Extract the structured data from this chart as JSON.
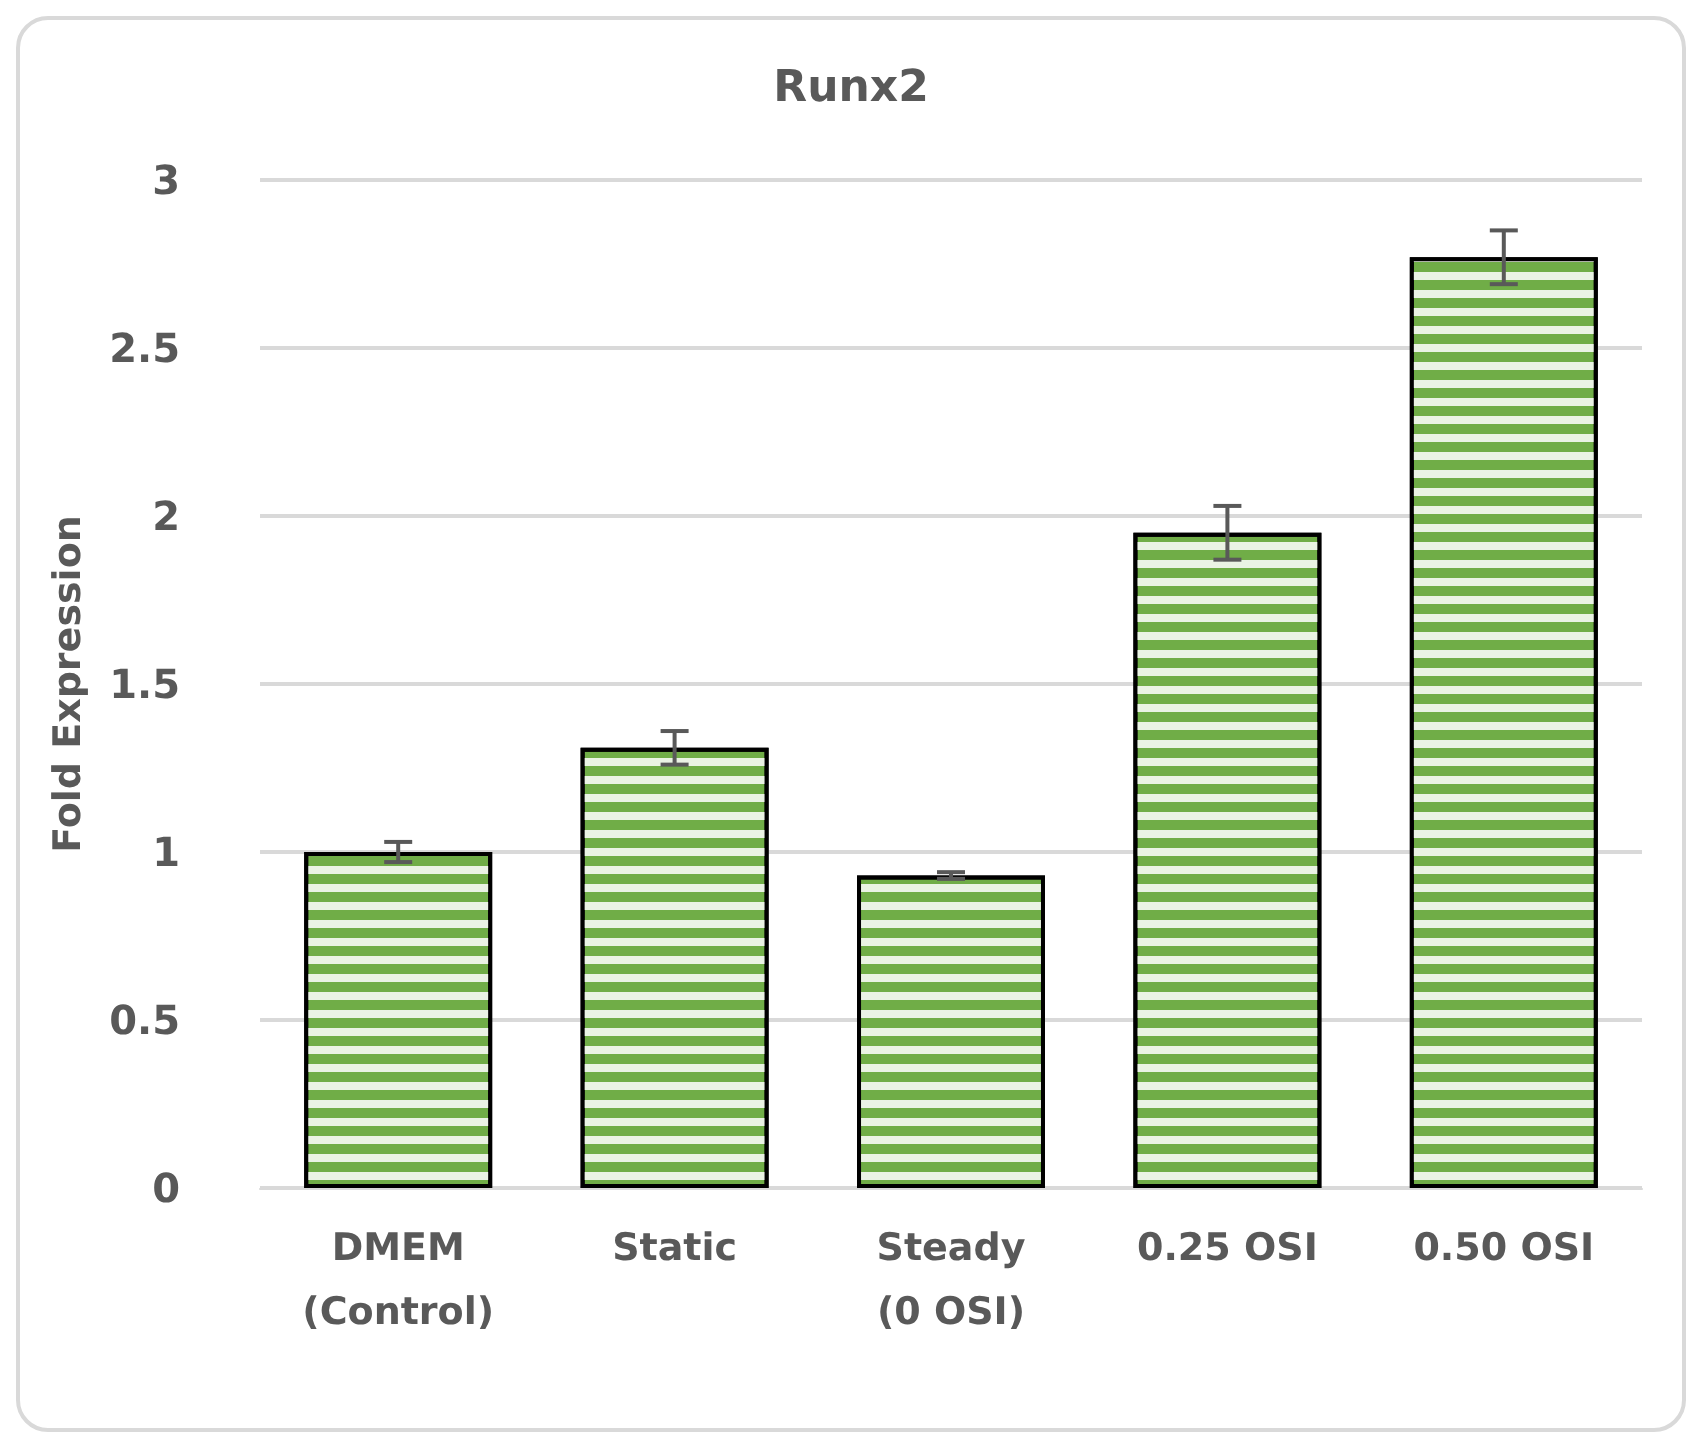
{
  "chart_data": {
    "type": "bar",
    "title": "Runx2",
    "ylabel": "Fold Expression",
    "categories": [
      "DMEM\n(Control)",
      "Static",
      "Steady\n(0 OSI)",
      "0.25 OSI",
      "0.50 OSI"
    ],
    "values": [
      1.0,
      1.31,
      0.93,
      1.95,
      2.77
    ],
    "errors": [
      0.03,
      0.05,
      0.01,
      0.08,
      0.08
    ],
    "color": "#70ad47",
    "ylim": [
      0,
      3
    ],
    "yticks": [
      0,
      0.5,
      1,
      1.5,
      2,
      2.5,
      3
    ],
    "grid": "y"
  }
}
